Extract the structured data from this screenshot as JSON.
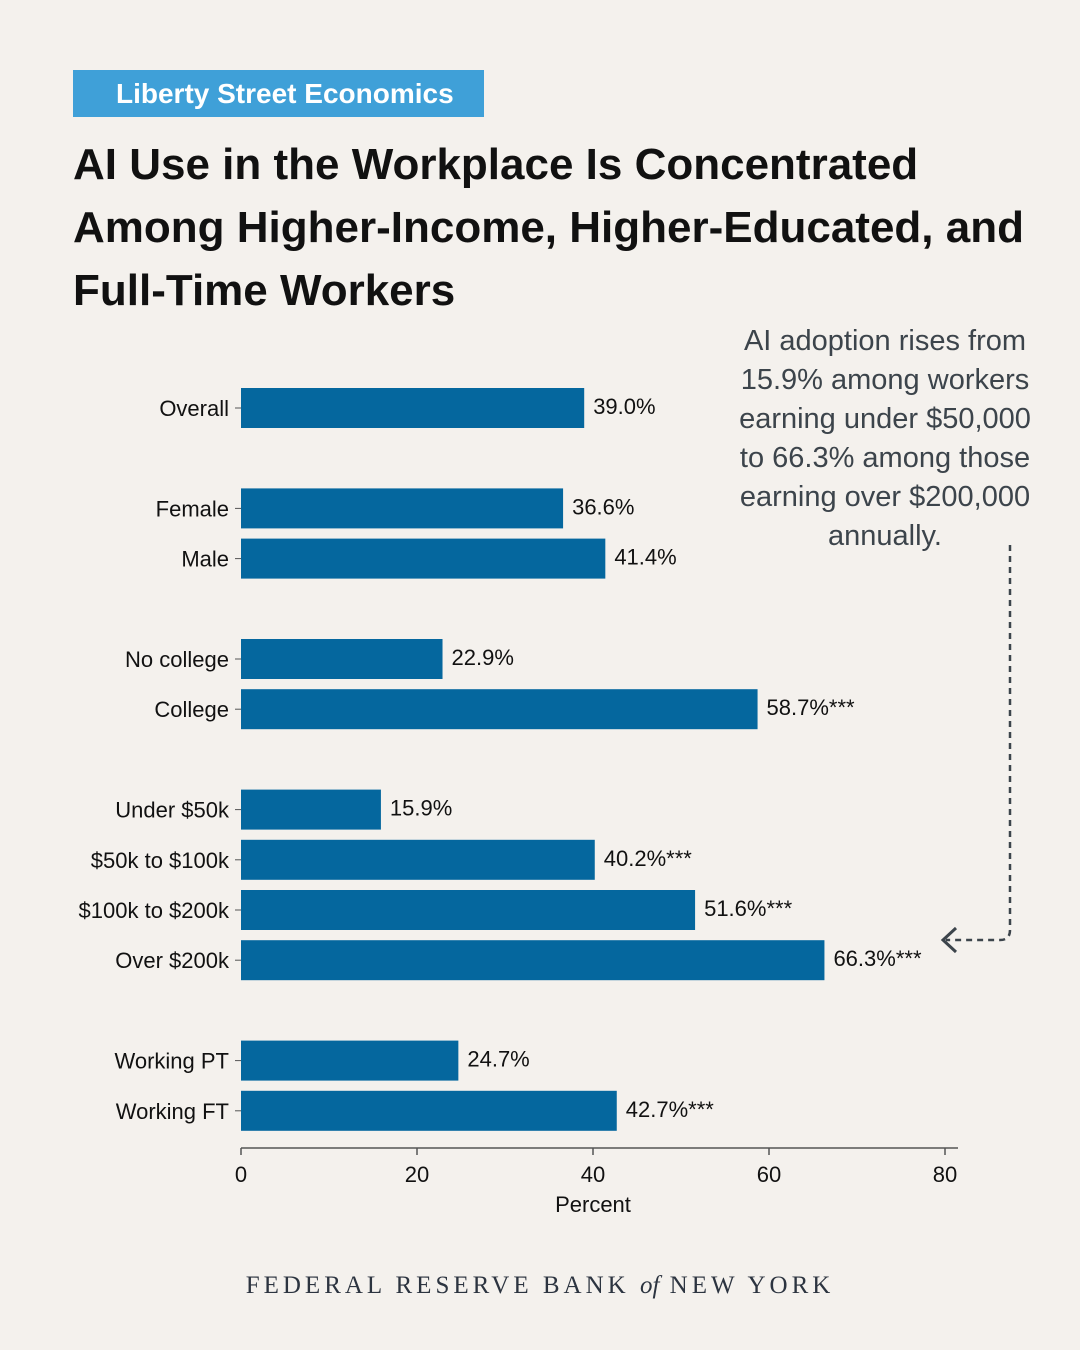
{
  "header": {
    "badge": "Liberty Street Economics",
    "title": "AI Use in the Workplace Is Concentrated Among Higher-Income, Higher-Educated, and Full-Time Workers"
  },
  "annotation": {
    "text": "AI adoption rises from 15.9% among workers earning under $50,000 to 66.3% among those earning over $200,000 annually."
  },
  "footer": {
    "before": "FEDERAL RESERVE BANK",
    "of": "of",
    "after": "NEW YORK"
  },
  "colors": {
    "bar": "#05679e",
    "badge": "#3fa0d8",
    "background": "#f4f1ed"
  },
  "chart_data": {
    "type": "bar",
    "orientation": "horizontal",
    "categories": [
      "Overall",
      "Female",
      "Male",
      "No college",
      "College",
      "Under $50k",
      "$50k to $100k",
      "$100k to $200k",
      "Over $200k",
      "Working PT",
      "Working FT"
    ],
    "values": [
      39.0,
      36.6,
      41.4,
      22.9,
      58.7,
      15.9,
      40.2,
      51.6,
      66.3,
      24.7,
      42.7
    ],
    "value_labels": [
      "39.0%",
      "36.6%",
      "41.4%",
      "22.9%",
      "58.7%***",
      "15.9%",
      "40.2%***",
      "51.6%***",
      "66.3%***",
      "24.7%",
      "42.7%***"
    ],
    "groups": [
      [
        0
      ],
      [
        1,
        2
      ],
      [
        3,
        4
      ],
      [
        5,
        6,
        7,
        8
      ],
      [
        9,
        10
      ]
    ],
    "xlabel": "Percent",
    "xlim": [
      0,
      80
    ],
    "xticks": [
      0,
      20,
      40,
      60,
      80
    ],
    "grid": false,
    "legend": "none"
  }
}
